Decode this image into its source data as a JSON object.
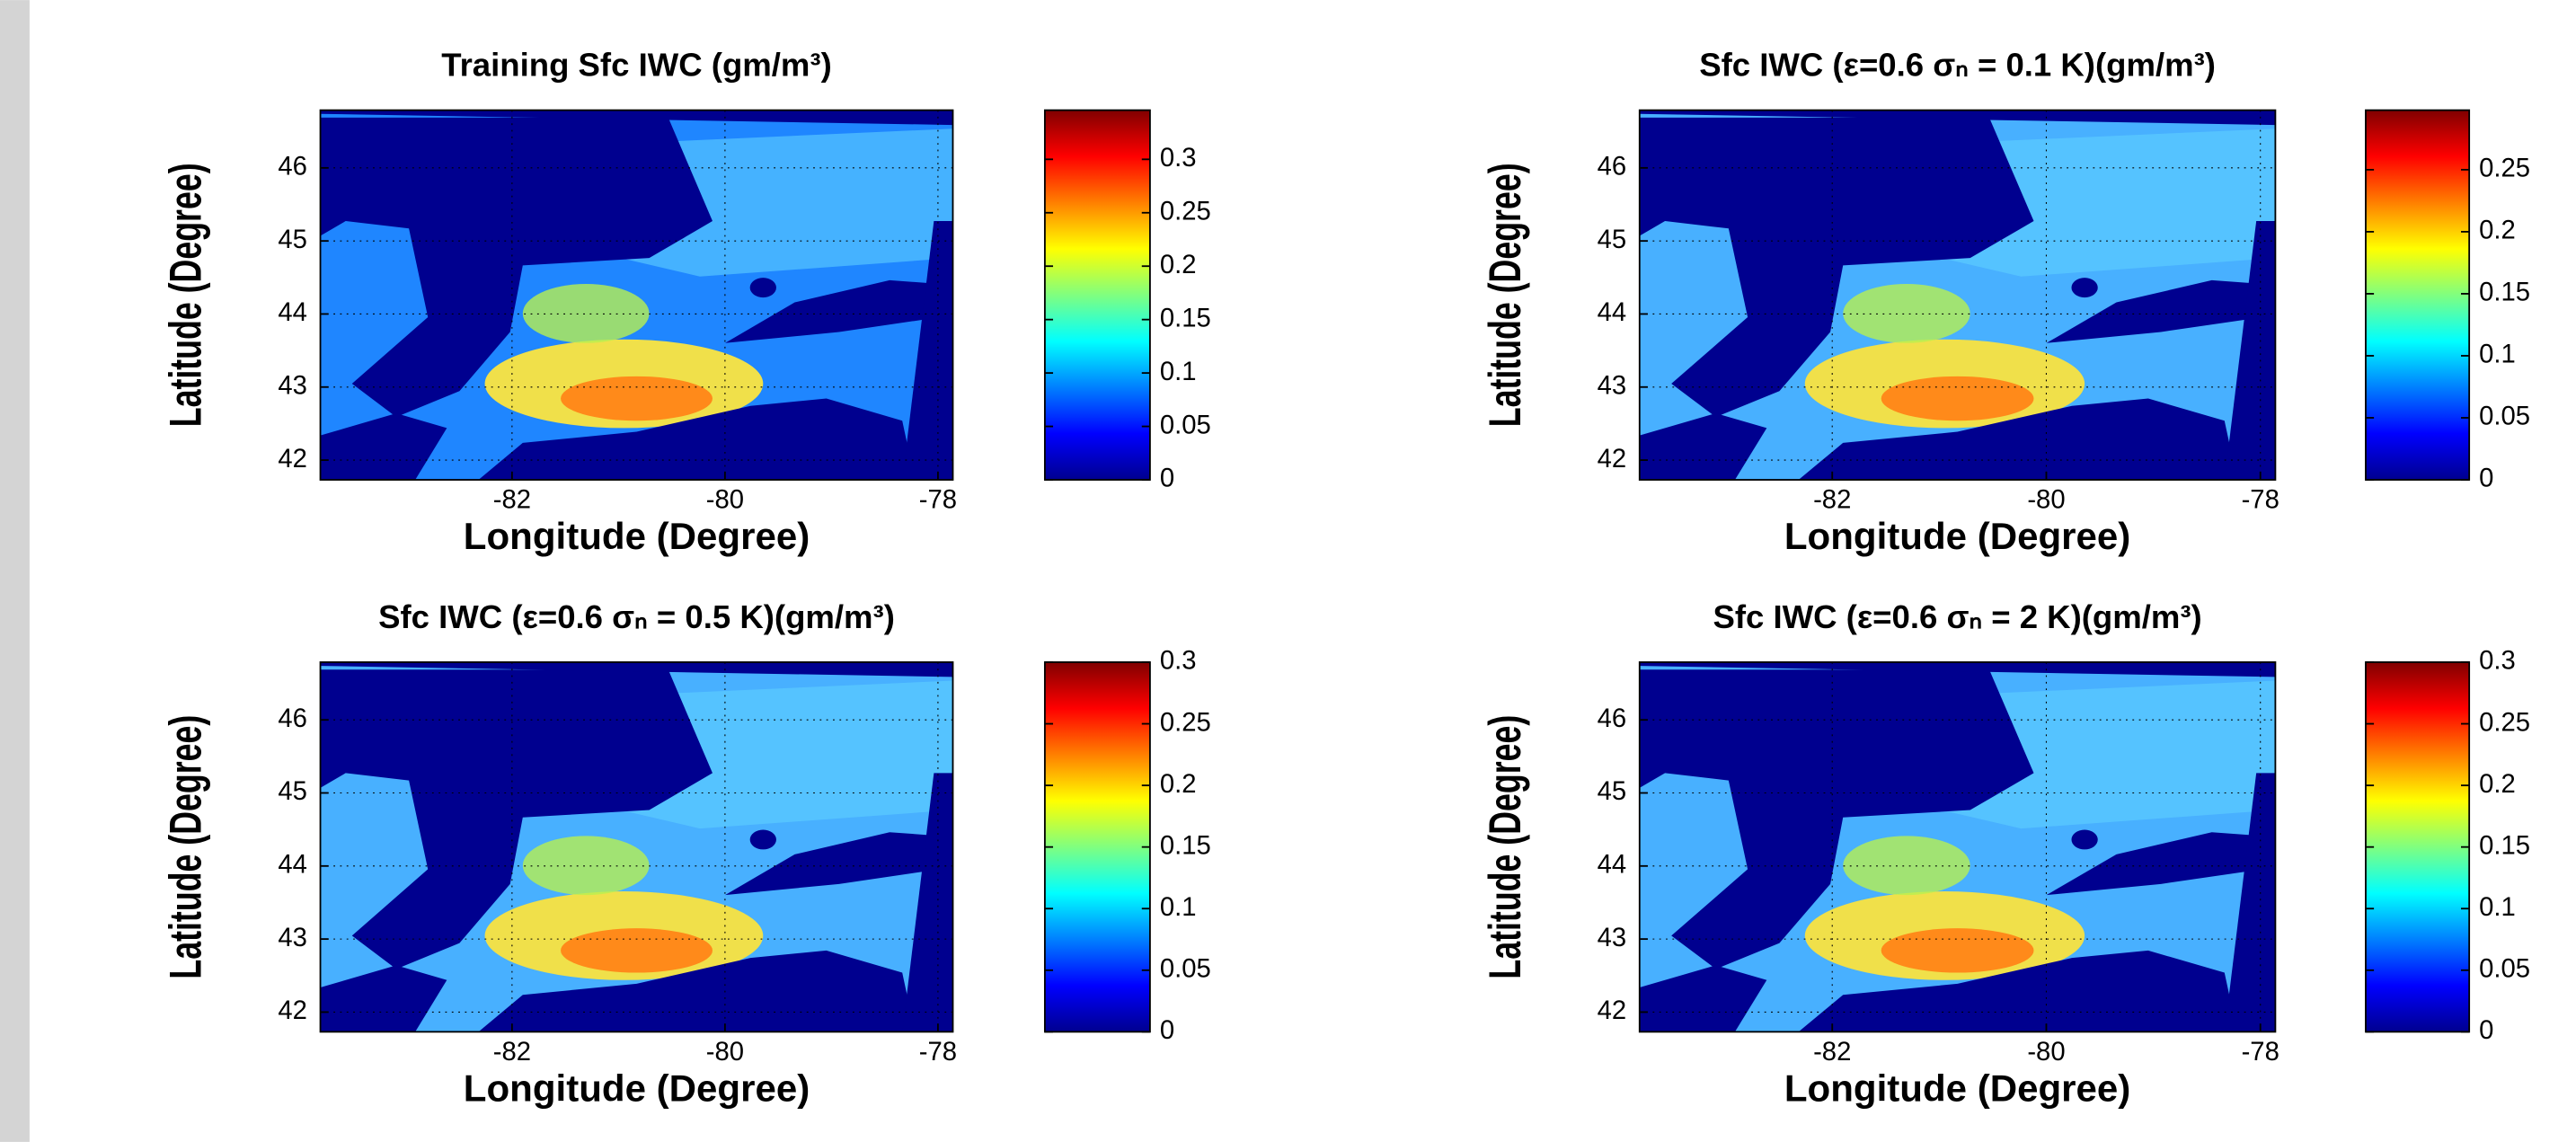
{
  "chart_data": [
    {
      "type": "heatmap",
      "title": "Training Sfc IWC (gm/m³)",
      "xlabel": "Longitude (Degree)",
      "ylabel": "Latitude (Degree)",
      "xlim": [
        -83.8,
        -77.86
      ],
      "xticks": [
        -82,
        -80,
        -78
      ],
      "ylim": [
        41.73,
        46.79
      ],
      "yticks": [
        42,
        43,
        44,
        45,
        46
      ],
      "colormap": "jet",
      "clim": [
        0,
        0.346
      ],
      "cticks": [
        0,
        0.05,
        0.1,
        0.15,
        0.2,
        0.25,
        0.3
      ],
      "grid": true
    },
    {
      "type": "heatmap",
      "title": "Sfc IWC (ε=0.6 σₙ = 0.1 K)(gm/m³)",
      "xlabel": "Longitude (Degree)",
      "ylabel": "Latitude (Degree)",
      "xlim": [
        -83.8,
        -77.86
      ],
      "xticks": [
        -82,
        -80,
        -78
      ],
      "ylim": [
        41.73,
        46.79
      ],
      "yticks": [
        42,
        43,
        44,
        45,
        46
      ],
      "colormap": "jet",
      "clim": [
        0,
        0.298
      ],
      "cticks": [
        0,
        0.05,
        0.1,
        0.15,
        0.2,
        0.25
      ],
      "grid": true
    },
    {
      "type": "heatmap",
      "title": "Sfc IWC (ε=0.6 σₙ = 0.5 K)(gm/m³)",
      "xlabel": "Longitude (Degree)",
      "ylabel": "Latitude (Degree)",
      "xlim": [
        -83.8,
        -77.86
      ],
      "xticks": [
        -82,
        -80,
        -78
      ],
      "ylim": [
        41.73,
        46.79
      ],
      "yticks": [
        42,
        43,
        44,
        45,
        46
      ],
      "colormap": "jet",
      "clim": [
        0,
        0.3
      ],
      "cticks": [
        0,
        0.05,
        0.1,
        0.15,
        0.2,
        0.25,
        0.3
      ],
      "grid": true
    },
    {
      "type": "heatmap",
      "title": "Sfc IWC (ε=0.6 σₙ = 2 K)(gm/m³)",
      "xlabel": "Longitude (Degree)",
      "ylabel": "Latitude (Degree)",
      "xlim": [
        -83.8,
        -77.86
      ],
      "xticks": [
        -82,
        -80,
        -78
      ],
      "ylim": [
        41.73,
        46.79
      ],
      "yticks": [
        42,
        43,
        44,
        45,
        46
      ],
      "colormap": "jet",
      "clim": [
        0,
        0.3
      ],
      "cticks": [
        0,
        0.05,
        0.1,
        0.15,
        0.2,
        0.25,
        0.3
      ],
      "grid": true
    }
  ]
}
